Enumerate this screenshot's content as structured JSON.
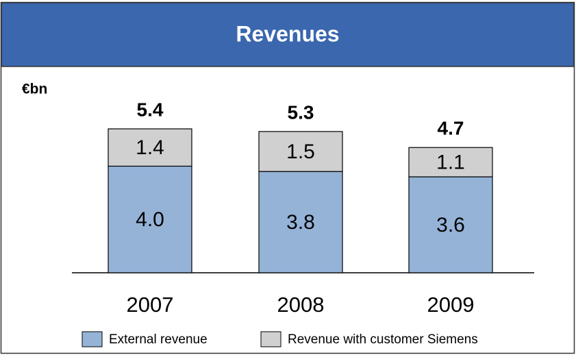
{
  "chart_data": {
    "type": "stacked-bar",
    "title": "Revenues",
    "unit_label": "€bn",
    "categories": [
      "2007",
      "2008",
      "2009"
    ],
    "series": [
      {
        "name": "External revenue",
        "color": "#95b3d7",
        "values": [
          4.0,
          3.8,
          3.6
        ],
        "value_labels": [
          "4.0",
          "3.8",
          "3.6"
        ]
      },
      {
        "name": "Revenue with customer Siemens",
        "color": "#d0d0d0",
        "values": [
          1.4,
          1.5,
          1.1
        ]
      }
    ],
    "totals": [
      5.4,
      5.3,
      4.7
    ]
  }
}
